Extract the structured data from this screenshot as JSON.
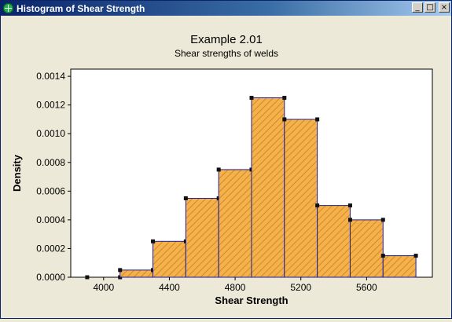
{
  "window": {
    "title": "Histogram of Shear Strength",
    "buttons": {
      "minimize": "_",
      "maximize": "□",
      "close": "×"
    }
  },
  "colors": {
    "bar_fill": "#f5b24a",
    "bar_hatch": "#c07820",
    "bar_edge": "#1c1ca0",
    "plot_bg": "#ffffff",
    "figure_bg": "#ece9d8"
  },
  "chart_data": {
    "type": "bar",
    "title": "Example 2.01",
    "subtitle": "Shear strengths of welds",
    "xlabel": "Shear Strength",
    "ylabel": "Density",
    "bin_edges": [
      3900,
      4100,
      4300,
      4500,
      4700,
      4900,
      5100,
      5300,
      5500,
      5700,
      5900
    ],
    "values": [
      0.0,
      5e-05,
      0.00025,
      0.00055,
      0.00075,
      0.00125,
      0.0011,
      0.0005,
      0.0004,
      0.00015
    ],
    "xlim": [
      3800,
      6000
    ],
    "ylim": [
      0,
      0.00145
    ],
    "xticks": [
      4000,
      4400,
      4800,
      5200,
      5600
    ],
    "xtick_labels": [
      "4000",
      "4400",
      "4800",
      "5200",
      "5600"
    ],
    "yticks": [
      0,
      0.0002,
      0.0004,
      0.0006,
      0.0008,
      0.001,
      0.0012,
      0.0014
    ],
    "ytick_labels": [
      "0.0000",
      "0.0002",
      "0.0004",
      "0.0006",
      "0.0008",
      "0.0010",
      "0.0012",
      "0.0014"
    ],
    "grid": false,
    "legend": "none",
    "bars_hatched": true
  }
}
